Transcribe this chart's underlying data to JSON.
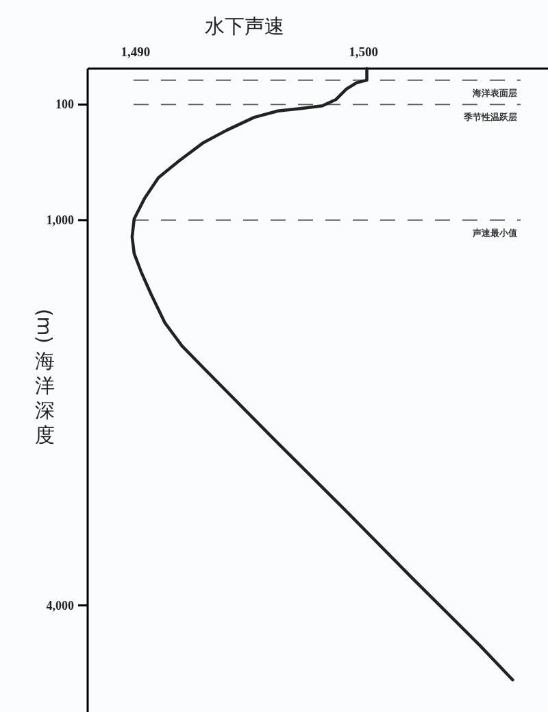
{
  "chart_data": {
    "type": "line",
    "title": "水下声速",
    "ylabel": "(m)海洋深度",
    "xlim": [
      1487.9,
      1508.1
    ],
    "ylim": [
      4830,
      -180
    ],
    "xticks": [
      {
        "value": 1490,
        "label": "1,490"
      },
      {
        "value": 1500,
        "label": "1,500"
      }
    ],
    "yticks": [
      100,
      {
        "value": 1000,
        "label": "1,000"
      },
      {
        "value": 4000,
        "label": "4,000"
      }
    ],
    "tick_labels": "xy",
    "grid": false,
    "marker": "none",
    "line_style": "solid",
    "series": [
      {
        "color": "#222222",
        "x": [
          1500.15,
          1500.15,
          1499.7,
          1499.25,
          1498.8,
          1498.2,
          1497.3,
          1496.25,
          1495.2,
          1494.0,
          1492.95,
          1491.9,
          1491.0,
          1490.4,
          1489.94,
          1489.85,
          1489.94,
          1490.24,
          1490.69,
          1491.29,
          1492.04,
          1493.09,
          1496.1,
          1499.1,
          1502.1,
          1505.1,
          1506.55
        ],
        "values": [
          -180,
          -90,
          -70,
          -20,
          60,
          110,
          130,
          150,
          200,
          300,
          400,
          540,
          670,
          830,
          990,
          1130,
          1260,
          1400,
          1580,
          1800,
          1980,
          2170,
          2710,
          3240,
          3780,
          4310,
          4580
        ]
      }
    ],
    "ref_lines": [
      {
        "axis": "y",
        "value": -90,
        "label": "海洋表面层",
        "color": "#555555",
        "line_style": "dashed"
      },
      {
        "axis": "y",
        "value": 100,
        "label": "季节性温跃层",
        "color": "#555555",
        "line_style": "dashed"
      },
      {
        "axis": "y",
        "value": 1000,
        "label": "声速最小值",
        "color": "#555555",
        "line_style": "dashed"
      }
    ]
  }
}
